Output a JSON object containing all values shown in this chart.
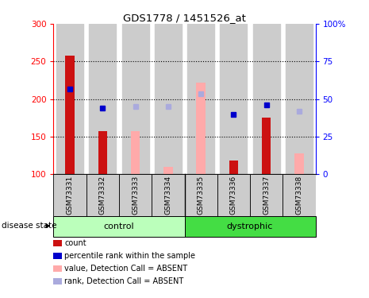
{
  "title": "GDS1778 / 1451526_at",
  "samples": [
    "GSM73331",
    "GSM73332",
    "GSM73333",
    "GSM73334",
    "GSM73335",
    "GSM73336",
    "GSM73337",
    "GSM73338"
  ],
  "red_bars": [
    258,
    157,
    null,
    null,
    null,
    118,
    175,
    null
  ],
  "pink_bars": [
    null,
    null,
    157,
    110,
    222,
    null,
    null,
    128
  ],
  "blue_squares": [
    213,
    188,
    null,
    null,
    null,
    180,
    192,
    null
  ],
  "lavender_squares": [
    null,
    null,
    190,
    190,
    207,
    null,
    null,
    184
  ],
  "ylim_left": [
    100,
    300
  ],
  "ylim_right": [
    0,
    100
  ],
  "left_ticks": [
    100,
    150,
    200,
    250,
    300
  ],
  "right_ticks": [
    0,
    25,
    50,
    75,
    100
  ],
  "right_tick_labels": [
    "0",
    "25",
    "50",
    "75",
    "100%"
  ],
  "hlines": [
    150,
    200,
    250
  ],
  "control_color_light": "#bbffbb",
  "control_color": "#bbffbb",
  "dystrophic_color": "#44dd44",
  "sample_bg_color": "#cccccc",
  "bar_color_red": "#cc1111",
  "bar_color_pink": "#ffaaaa",
  "dot_color_blue": "#0000cc",
  "dot_color_lavender": "#aaaadd",
  "legend_labels": [
    "count",
    "percentile rank within the sample",
    "value, Detection Call = ABSENT",
    "rank, Detection Call = ABSENT"
  ],
  "legend_colors": [
    "#cc1111",
    "#0000cc",
    "#ffaaaa",
    "#aaaadd"
  ]
}
